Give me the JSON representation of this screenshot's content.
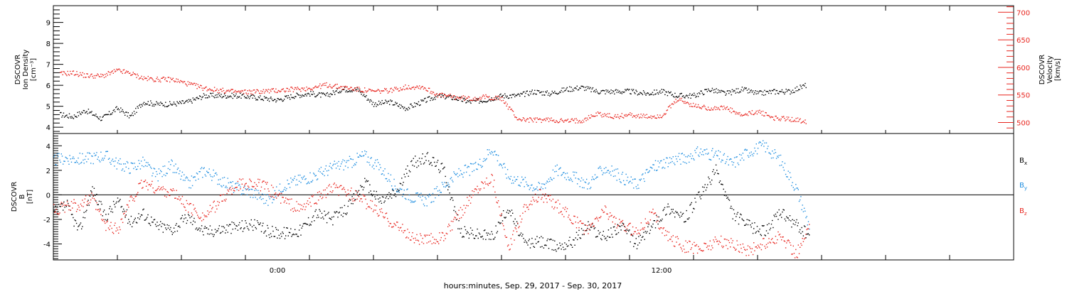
{
  "figure": {
    "xlabel": "hours:minutes, Sep. 29, 2017 - Sep. 30, 2017",
    "x_tick_labels": [
      {
        "hour": 0,
        "label": "0:00"
      },
      {
        "hour": 12,
        "label": "12:00"
      }
    ],
    "x_range_hours": [
      -7,
      23
    ],
    "data_end_hour": 16.7,
    "colors": {
      "black": "#000000",
      "red": "#e8251e",
      "blue": "#1f8ee0"
    }
  },
  "chart_data": [
    {
      "type": "scatter",
      "panel": "plasma",
      "ylabel_left": [
        "DSCOVR",
        "Ion Density",
        "[cm⁻³]"
      ],
      "ylabel_right": [
        "DSCOVR",
        "Velocity",
        "[km/s]"
      ],
      "ylim_left": [
        3.7,
        9.8
      ],
      "ylim_right": [
        480,
        712
      ],
      "yticks_left": [
        4,
        5,
        6,
        7,
        8,
        9
      ],
      "yticks_right": [
        500,
        550,
        600,
        650,
        700
      ],
      "grid": false,
      "series": [
        {
          "axis": "left",
          "color": "#000000",
          "x": [
            -6.8,
            -6.4,
            -6.0,
            -5.5,
            -5.0,
            -4.6,
            -4.2,
            -3.8,
            -3.3,
            -2.8,
            -2.3,
            -1.8,
            -1.2,
            -0.6,
            0.0,
            0.5,
            1.0,
            1.5,
            2.0,
            2.5,
            3.0,
            3.5,
            4.0,
            4.5,
            5.0,
            5.5,
            6.0,
            6.5,
            7.0,
            7.5,
            8.0,
            8.5,
            9.0,
            9.5,
            10.0,
            10.5,
            11.0,
            11.5,
            12.0,
            12.5,
            13.0,
            13.5,
            14.0,
            14.5,
            15.0,
            15.5,
            16.0,
            16.5
          ],
          "y": [
            4.6,
            4.5,
            4.8,
            4.4,
            4.9,
            4.5,
            5.2,
            5.1,
            5.1,
            5.2,
            5.5,
            5.5,
            5.5,
            5.4,
            5.3,
            5.5,
            5.6,
            5.5,
            5.8,
            5.8,
            5.1,
            5.2,
            4.9,
            5.2,
            5.5,
            5.4,
            5.2,
            5.3,
            5.5,
            5.5,
            5.7,
            5.6,
            5.8,
            5.9,
            5.7,
            5.7,
            5.7,
            5.6,
            5.7,
            5.5,
            5.5,
            5.8,
            5.6,
            5.8,
            5.6,
            5.7,
            5.7,
            6.0
          ]
        },
        {
          "axis": "right",
          "color": "#e8251e",
          "x": [
            -6.8,
            -6.4,
            -6.0,
            -5.5,
            -5.0,
            -4.6,
            -4.2,
            -3.8,
            -3.3,
            -2.8,
            -2.3,
            -1.8,
            -1.2,
            -0.6,
            0.0,
            0.5,
            1.0,
            1.5,
            2.0,
            2.5,
            3.0,
            3.5,
            4.0,
            4.5,
            5.0,
            5.5,
            6.0,
            6.5,
            7.0,
            7.5,
            8.0,
            8.5,
            9.0,
            9.5,
            10.0,
            10.5,
            11.0,
            11.5,
            12.0,
            12.5,
            13.0,
            13.5,
            14.0,
            14.5,
            15.0,
            15.5,
            16.0,
            16.5
          ],
          "y": [
            588,
            590,
            585,
            584,
            594,
            589,
            580,
            578,
            578,
            570,
            562,
            558,
            555,
            556,
            558,
            560,
            562,
            568,
            564,
            560,
            556,
            558,
            564,
            565,
            550,
            546,
            543,
            546,
            543,
            506,
            504,
            505,
            502,
            504,
            516,
            510,
            514,
            510,
            512,
            542,
            530,
            526,
            526,
            512,
            520,
            508,
            506,
            502
          ]
        }
      ]
    },
    {
      "type": "scatter",
      "panel": "magnetic-field",
      "ylabel_left": [
        "DSCOVR",
        "B",
        "[nT]"
      ],
      "ylim": [
        -5.3,
        5.0
      ],
      "yticks": [
        -4,
        -2,
        0,
        2,
        4
      ],
      "zero_line": true,
      "grid": false,
      "legend": {
        "placement": "right"
      },
      "series": [
        {
          "name": "Bx",
          "color": "#000000",
          "x": [
            -7.0,
            -6.6,
            -6.2,
            -5.8,
            -5.4,
            -5.0,
            -4.6,
            -4.2,
            -3.8,
            -3.3,
            -2.8,
            -2.3,
            -1.8,
            -1.3,
            -0.8,
            -0.3,
            0.2,
            0.7,
            1.2,
            1.7,
            2.2,
            2.7,
            3.2,
            3.7,
            4.2,
            4.7,
            5.2,
            5.7,
            6.2,
            6.7,
            7.2,
            7.7,
            8.2,
            8.7,
            9.2,
            9.7,
            10.2,
            10.7,
            11.2,
            11.7,
            12.2,
            12.7,
            13.2,
            13.7,
            14.2,
            14.7,
            15.2,
            15.7,
            16.2,
            16.6
          ],
          "y": [
            -1.5,
            -0.8,
            -3.0,
            0.5,
            -1.8,
            -0.5,
            -2.2,
            -1.5,
            -2.5,
            -2.8,
            -1.8,
            -3.0,
            -2.8,
            -2.6,
            -2.4,
            -3.0,
            -3.1,
            -2.9,
            -1.5,
            -2.0,
            -1.0,
            1.0,
            -0.5,
            0.2,
            2.6,
            3.0,
            2.0,
            -3.0,
            -3.2,
            -3.4,
            -1.0,
            -4.0,
            -3.8,
            -4.2,
            -3.8,
            -2.5,
            -3.5,
            -2.5,
            -4.0,
            -2.5,
            -1.0,
            -2.0,
            0.0,
            2.0,
            -1.5,
            -2.5,
            -3.0,
            -1.5,
            -2.5,
            -3.3
          ]
        },
        {
          "name": "By",
          "color": "#1f8ee0",
          "x": [
            -7.0,
            -6.6,
            -6.2,
            -5.8,
            -5.4,
            -5.0,
            -4.6,
            -4.2,
            -3.8,
            -3.3,
            -2.8,
            -2.3,
            -1.8,
            -1.3,
            -0.8,
            -0.3,
            0.2,
            0.7,
            1.2,
            1.7,
            2.2,
            2.7,
            3.2,
            3.7,
            4.2,
            4.7,
            5.2,
            5.7,
            6.2,
            6.7,
            7.2,
            7.7,
            8.2,
            8.7,
            9.2,
            9.7,
            10.2,
            10.7,
            11.2,
            11.7,
            12.2,
            12.7,
            13.2,
            13.7,
            14.2,
            14.7,
            15.2,
            15.7,
            16.2,
            16.6
          ],
          "y": [
            2.8,
            3.0,
            2.9,
            3.0,
            3.2,
            2.5,
            2.2,
            2.6,
            1.5,
            2.4,
            0.8,
            2.0,
            1.2,
            0.5,
            0.2,
            -0.5,
            0.8,
            1.2,
            1.6,
            2.2,
            2.6,
            3.2,
            2.2,
            0.6,
            -0.2,
            -0.5,
            0.8,
            1.8,
            2.2,
            3.8,
            1.5,
            1.0,
            0.5,
            2.0,
            1.5,
            0.8,
            2.2,
            1.5,
            0.8,
            2.2,
            2.8,
            3.0,
            3.5,
            3.2,
            2.5,
            3.5,
            4.0,
            2.8,
            0.5,
            -2.5
          ]
        },
        {
          "name": "Bz",
          "color": "#e8251e",
          "x": [
            -7.0,
            -6.6,
            -6.2,
            -5.8,
            -5.4,
            -5.0,
            -4.6,
            -4.2,
            -3.8,
            -3.3,
            -2.8,
            -2.3,
            -1.8,
            -1.3,
            -0.8,
            -0.3,
            0.2,
            0.7,
            1.2,
            1.7,
            2.2,
            2.7,
            3.2,
            3.7,
            4.2,
            4.7,
            5.2,
            5.7,
            6.2,
            6.7,
            7.2,
            7.7,
            8.2,
            8.7,
            9.2,
            9.7,
            10.2,
            10.7,
            11.2,
            11.7,
            12.2,
            12.7,
            13.2,
            13.7,
            14.2,
            14.7,
            15.2,
            15.7,
            16.2,
            16.6
          ],
          "y": [
            -1.2,
            -1.0,
            -0.8,
            -0.3,
            -2.5,
            -2.8,
            -0.5,
            1.0,
            0.5,
            0.2,
            -1.0,
            -1.8,
            -0.5,
            0.8,
            1.0,
            0.5,
            -0.5,
            -1.2,
            -0.3,
            0.5,
            0.2,
            -0.5,
            -1.5,
            -2.5,
            -3.5,
            -3.7,
            -3.4,
            -1.5,
            0.5,
            1.5,
            -4.5,
            -1.0,
            0.0,
            -0.8,
            -2.0,
            -3.0,
            -1.2,
            -2.5,
            -3.0,
            -1.5,
            -3.5,
            -4.2,
            -4.4,
            -3.8,
            -4.0,
            -4.6,
            -4.0,
            -3.4,
            -4.8,
            -2.8
          ]
        }
      ],
      "legend_entries": [
        {
          "base": "B",
          "sub": "x",
          "color": "#000000"
        },
        {
          "base": "B",
          "sub": "y",
          "color": "#1f8ee0"
        },
        {
          "base": "B",
          "sub": "z",
          "color": "#e8251e"
        }
      ]
    }
  ]
}
